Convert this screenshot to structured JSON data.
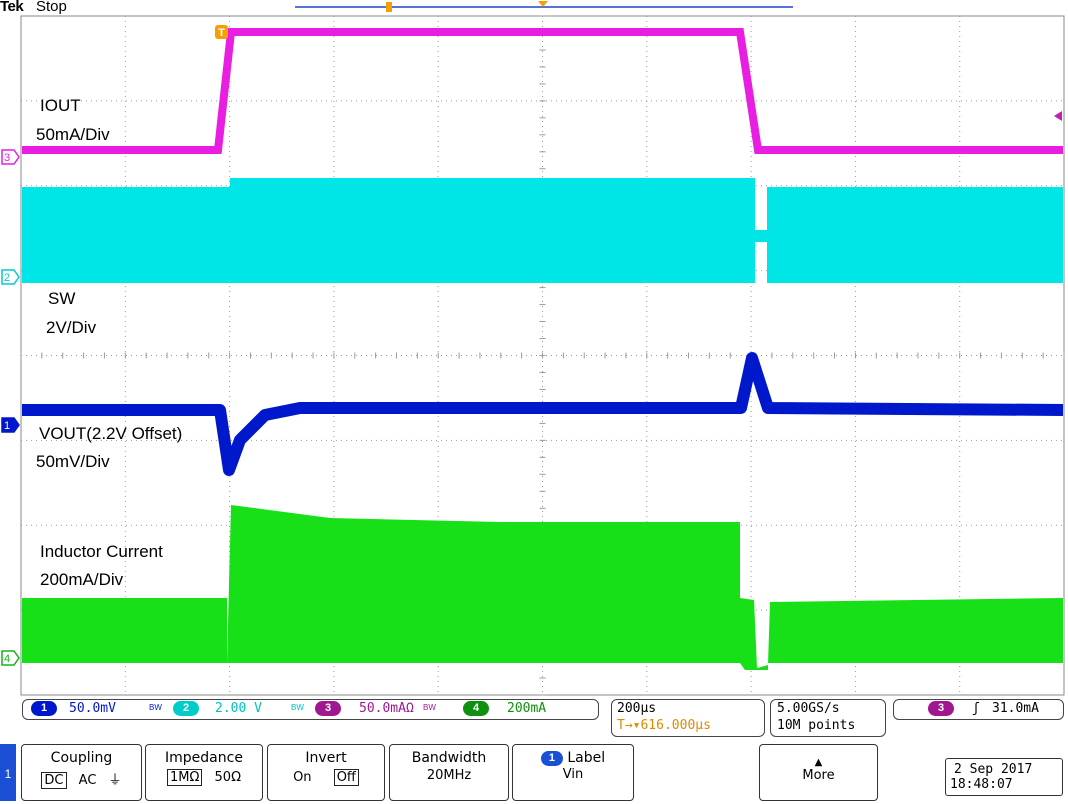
{
  "header": {
    "brand": "Tek",
    "state": "Stop"
  },
  "labels": {
    "iout_name": "IOUT",
    "iout_scale": "50mA/Div",
    "sw_name": "SW",
    "sw_scale": "2V/Div",
    "vout_name": "VOUT(2.2V Offset)",
    "vout_scale": "50mV/Div",
    "il_name": "Inductor Current",
    "il_scale": "200mA/Div"
  },
  "channel_markers": [
    "3",
    "2",
    "1",
    "4"
  ],
  "trigger_marker": "T",
  "colors": {
    "ch1": "#0018cc",
    "ch2": "#00e5e5",
    "ch3": "#e81ee0",
    "ch4": "#18e018",
    "trigger": "#f5a000",
    "grid": "#999999"
  },
  "status": {
    "ch1": {
      "num": "1",
      "value": "50.0mV",
      "bw": "BW"
    },
    "ch2": {
      "num": "2",
      "value": "2.00 V",
      "bw": "BW"
    },
    "ch3": {
      "num": "3",
      "value": "50.0mAΩ",
      "bw": "BW"
    },
    "ch4": {
      "num": "4",
      "value": "200mA"
    },
    "timebase": "200µs",
    "trigger_pos": "T→▾616.000µs",
    "sample_rate": "5.00GS/s",
    "record": "10M points",
    "trig_src": "3",
    "trig_slope": "ʃ",
    "trig_level": "31.0mA"
  },
  "menu": {
    "tab": "1",
    "coupling": {
      "title": "Coupling",
      "opts": [
        "DC",
        "AC",
        "⏚"
      ]
    },
    "impedance": {
      "title": "Impedance",
      "opts": [
        "1MΩ",
        "50Ω"
      ]
    },
    "invert": {
      "title": "Invert",
      "opts": [
        "On",
        "Off"
      ]
    },
    "bandwidth": {
      "title": "Bandwidth",
      "value": "20MHz"
    },
    "label": {
      "num": "1",
      "title": "Label",
      "value": "Vin"
    },
    "more": {
      "title": "More"
    }
  },
  "datetime": {
    "date": "2 Sep  2017",
    "time": "18:48:07"
  }
}
